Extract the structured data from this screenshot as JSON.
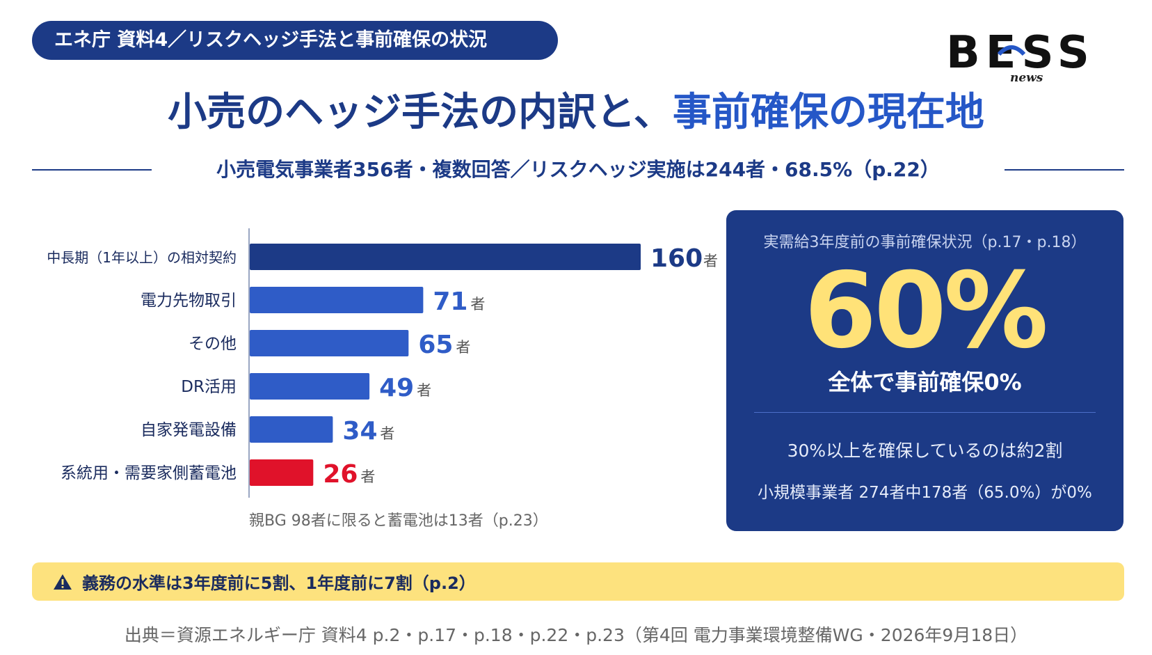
{
  "tag": "エネ庁 資料4／リスクヘッジ手法と事前確保の状況",
  "logo": {
    "text": "BESS",
    "sub": "news"
  },
  "title": {
    "part1": "小売のヘッジ手法の内訳と、",
    "part2": "事前確保の現在地"
  },
  "subtitle": "小売電気事業者356者・複数回答／リスクヘッジ実施は244者・68.5%（p.22）",
  "chart_data": {
    "type": "bar",
    "orientation": "horizontal",
    "categories": [
      "中長期（1年以上）の相対契約",
      "電力先物取引",
      "その他",
      "DR活用",
      "自家発電設備",
      "系統用・需要家側蓄電池"
    ],
    "values": [
      160,
      71,
      65,
      49,
      34,
      26
    ],
    "unit": "者",
    "colors": [
      "#1c3a86",
      "#2f5cc7",
      "#2f5cc7",
      "#2f5cc7",
      "#2f5cc7",
      "#e0122a"
    ],
    "title": "",
    "xlabel": "",
    "ylabel": "",
    "grid": false
  },
  "chart_note": "親BG 98者に限ると蓄電池は13者（p.23）",
  "panel": {
    "heading": "実需給3年度前の事前確保状況（p.17・p.18）",
    "big_value": "60%",
    "caption": "全体で事前確保0%",
    "stat1": "30%以上を確保しているのは約2割",
    "stat2": "小規模事業者 274者中178者（65.0%）が0%"
  },
  "alert": {
    "icon": "warning-icon",
    "text": "義務の水準は3年度前に5割、1年度前に7割（p.2）"
  },
  "source": "出典＝資源エネルギー庁 資料4 p.2・p.17・p.18・p.22・p.23（第4回 電力事業環境整備WG・2026年9月18日）",
  "colors": {
    "navy": "#1c3a86",
    "blue": "#2f5cc7",
    "red": "#e0122a",
    "yellow": "#fde27e",
    "gold": "#ffe278"
  }
}
